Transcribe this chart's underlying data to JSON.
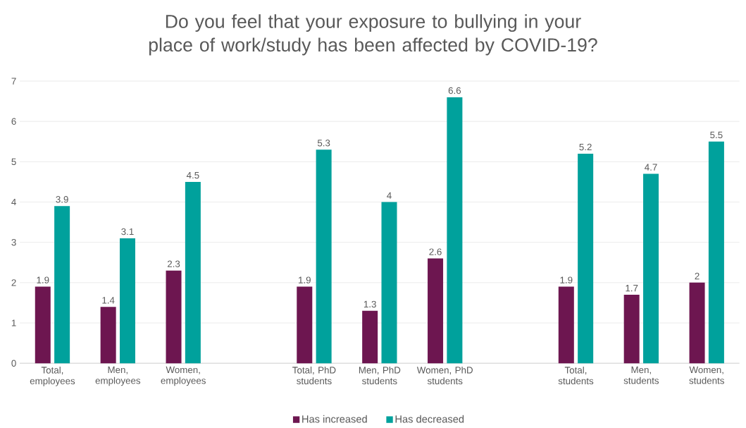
{
  "chart_data": {
    "type": "bar",
    "title": "Do you feel that your exposure to bullying in your place of work/study has been affected by COVID-19?",
    "categories": [
      "Total, employees",
      "Men, employees",
      "Women, employees",
      null,
      "Total, PhD students",
      "Men, PhD students",
      "Women, PhD students",
      null,
      "Total, students",
      "Men, students",
      "Women, students"
    ],
    "series": [
      {
        "name": "Has increased",
        "color": "#6d1650",
        "values": [
          1.9,
          1.4,
          2.3,
          null,
          1.9,
          1.3,
          2.6,
          null,
          1.9,
          1.7,
          2
        ]
      },
      {
        "name": "Has decreased",
        "color": "#00a19c",
        "values": [
          3.9,
          3.1,
          4.5,
          null,
          5.3,
          4,
          6.6,
          null,
          5.2,
          4.7,
          5.5
        ]
      }
    ],
    "ylim": [
      0,
      7
    ],
    "yticks": [
      0,
      1,
      2,
      3,
      4,
      5,
      6,
      7
    ],
    "grid": "y",
    "legend": "bottom",
    "data_labels": true
  }
}
